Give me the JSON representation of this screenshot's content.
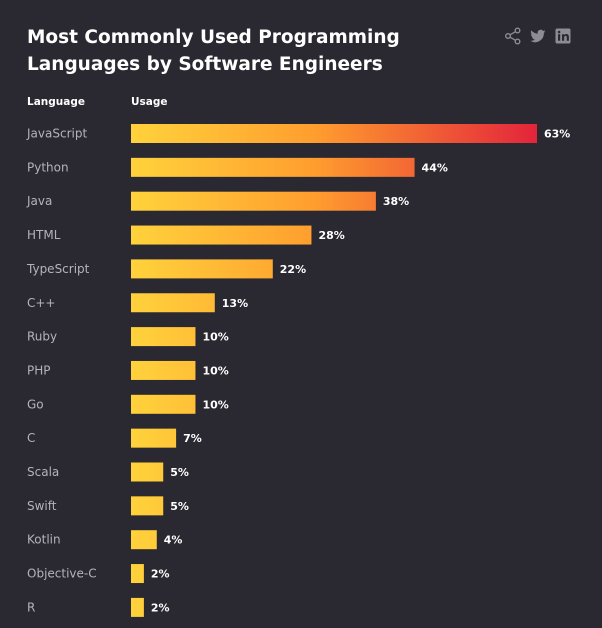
{
  "header": {
    "title": "Most Commonly Used Programming Languages by Software Engineers",
    "share_icons": [
      "share-icon",
      "twitter-icon",
      "linkedin-icon"
    ]
  },
  "colors": {
    "background": "#2a2830",
    "bar_start": "#ffd23c",
    "bar_end": "#e3243b",
    "label": "#b4b3ba"
  },
  "chart_data": {
    "type": "bar",
    "orientation": "horizontal",
    "title": "Most Commonly Used Programming Languages by Software Engineers",
    "xlabel": "Usage",
    "ylabel": "Language",
    "xlim": [
      0,
      63
    ],
    "value_suffix": "%",
    "categories": [
      "JavaScript",
      "Python",
      "Java",
      "HTML",
      "TypeScript",
      "C++",
      "Ruby",
      "PHP",
      "Go",
      "C",
      "Scala",
      "Swift",
      "Kotlin",
      "Objective-C",
      "R"
    ],
    "values": [
      63,
      44,
      38,
      28,
      22,
      13,
      10,
      10,
      10,
      7,
      5,
      5,
      4,
      2,
      2
    ],
    "value_labels": [
      "63%",
      "44%",
      "38%",
      "28%",
      "22%",
      "13%",
      "10%",
      "10%",
      "10%",
      "7%",
      "5%",
      "5%",
      "4%",
      "2%",
      "2%"
    ]
  }
}
